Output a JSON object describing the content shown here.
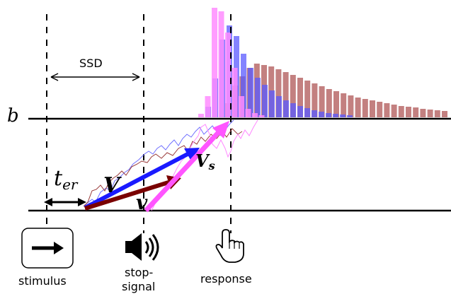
{
  "labels": {
    "b": "b",
    "ssd": "SSD",
    "ter_main": "t",
    "ter_sub": "er",
    "V": "V",
    "v": "v",
    "Vs_main": "V",
    "Vs_sub": "s",
    "stimulus": "stimulus",
    "stop_signal_line1": "stop-",
    "stop_signal_line2": "signal",
    "response": "response"
  },
  "colors": {
    "pink": "#ff66ff",
    "blue": "#3333ff",
    "darkred": "#7a0000",
    "bar_pink": "#ff8cff",
    "bar_blue": "#5a5aff",
    "bar_red": "#b86a6a"
  },
  "icons": {
    "stimulus": "right-arrow-icon",
    "stop_signal": "speaker-icon",
    "response": "pointing-hand-icon"
  }
}
